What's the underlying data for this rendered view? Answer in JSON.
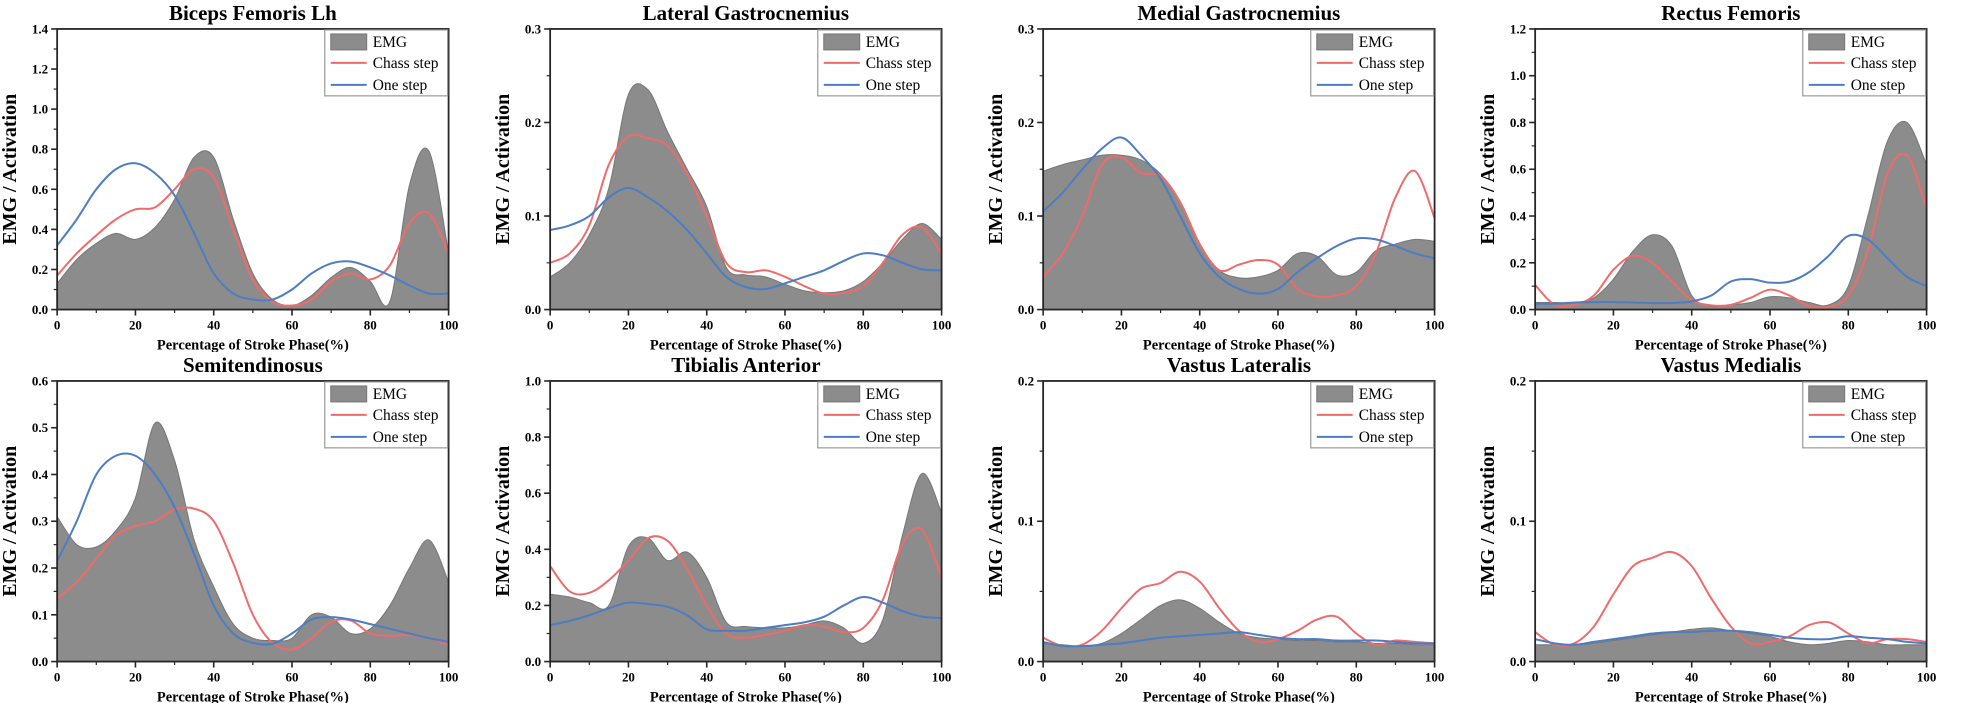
{
  "page": {
    "background": "#ffffff"
  },
  "chart_common": {
    "xlabel": "Percentage of Stroke Phase(%)",
    "ylabel": "EMG / Activation",
    "legend": [
      "EMG",
      "Chass step",
      "One step"
    ],
    "legend_position": "top-right",
    "xlim": [
      0,
      100
    ],
    "x_ticks": [
      0,
      20,
      40,
      60,
      80,
      100
    ],
    "x_minor_ticks": [
      10,
      30,
      50,
      70,
      90
    ],
    "grid": "off",
    "colors": {
      "emg_fill": "#8c8c8c",
      "emg_edge": "#767676",
      "chass_step": "#ef6b6b",
      "one_step": "#4c7dc3",
      "frame": "#262626",
      "legend_border": "#9a9a9a",
      "background": "#ffffff"
    }
  },
  "chart_data": [
    {
      "type": "area",
      "title": "Biceps Femoris Lh",
      "xlabel": "Percentage of Stroke Phase(%)",
      "ylabel": "EMG / Activation",
      "ylim": [
        0,
        1.4
      ],
      "yticks": [
        0.0,
        0.2,
        0.4,
        0.6,
        0.8,
        1.0,
        1.2,
        1.4
      ],
      "x": [
        0,
        5,
        10,
        15,
        20,
        25,
        30,
        35,
        40,
        45,
        50,
        55,
        60,
        65,
        70,
        75,
        80,
        85,
        90,
        95,
        100
      ],
      "series": [
        {
          "name": "EMG",
          "kind": "area",
          "values": [
            0.13,
            0.25,
            0.33,
            0.38,
            0.35,
            0.41,
            0.55,
            0.76,
            0.76,
            0.45,
            0.18,
            0.05,
            0.02,
            0.07,
            0.16,
            0.21,
            0.14,
            0.04,
            0.62,
            0.79,
            0.28
          ]
        },
        {
          "name": "Chass step",
          "kind": "line",
          "values": [
            0.17,
            0.28,
            0.37,
            0.45,
            0.5,
            0.51,
            0.6,
            0.7,
            0.66,
            0.4,
            0.15,
            0.04,
            0.02,
            0.05,
            0.14,
            0.18,
            0.15,
            0.22,
            0.43,
            0.48,
            0.28
          ]
        },
        {
          "name": "One step",
          "kind": "line",
          "values": [
            0.32,
            0.45,
            0.6,
            0.7,
            0.73,
            0.68,
            0.57,
            0.38,
            0.18,
            0.08,
            0.05,
            0.05,
            0.1,
            0.18,
            0.23,
            0.24,
            0.21,
            0.17,
            0.12,
            0.08,
            0.08
          ]
        }
      ]
    },
    {
      "type": "area",
      "title": "Lateral Gastrocnemius",
      "xlabel": "Percentage of Stroke Phase(%)",
      "ylabel": "EMG / Activation",
      "ylim": [
        0,
        0.3
      ],
      "yticks": [
        0.0,
        0.1,
        0.2,
        0.3
      ],
      "x": [
        0,
        5,
        10,
        15,
        20,
        25,
        30,
        35,
        40,
        45,
        50,
        55,
        60,
        65,
        70,
        75,
        80,
        85,
        90,
        95,
        100
      ],
      "series": [
        {
          "name": "EMG",
          "kind": "area",
          "values": [
            0.035,
            0.05,
            0.08,
            0.13,
            0.23,
            0.235,
            0.19,
            0.15,
            0.11,
            0.045,
            0.037,
            0.035,
            0.027,
            0.02,
            0.018,
            0.02,
            0.03,
            0.05,
            0.075,
            0.092,
            0.075
          ]
        },
        {
          "name": "Chass step",
          "kind": "line",
          "values": [
            0.05,
            0.06,
            0.09,
            0.155,
            0.185,
            0.183,
            0.175,
            0.145,
            0.1,
            0.05,
            0.04,
            0.042,
            0.035,
            0.025,
            0.017,
            0.018,
            0.025,
            0.05,
            0.08,
            0.088,
            0.06
          ]
        },
        {
          "name": "One step",
          "kind": "line",
          "values": [
            0.085,
            0.09,
            0.1,
            0.12,
            0.13,
            0.12,
            0.105,
            0.085,
            0.06,
            0.035,
            0.024,
            0.022,
            0.028,
            0.035,
            0.042,
            0.052,
            0.06,
            0.058,
            0.05,
            0.043,
            0.042
          ]
        }
      ]
    },
    {
      "type": "area",
      "title": "Medial Gastrocnemius",
      "xlabel": "Percentage of Stroke Phase(%)",
      "ylabel": "EMG / Activation",
      "ylim": [
        0,
        0.3
      ],
      "yticks": [
        0.0,
        0.1,
        0.2,
        0.3
      ],
      "x": [
        0,
        5,
        10,
        15,
        20,
        25,
        30,
        35,
        40,
        45,
        50,
        55,
        60,
        65,
        70,
        75,
        80,
        85,
        90,
        95,
        100
      ],
      "series": [
        {
          "name": "EMG",
          "kind": "area",
          "values": [
            0.148,
            0.155,
            0.16,
            0.165,
            0.165,
            0.16,
            0.145,
            0.115,
            0.07,
            0.042,
            0.034,
            0.035,
            0.042,
            0.06,
            0.057,
            0.037,
            0.04,
            0.063,
            0.07,
            0.075,
            0.073
          ]
        },
        {
          "name": "Chass step",
          "kind": "line",
          "values": [
            0.035,
            0.06,
            0.1,
            0.155,
            0.163,
            0.146,
            0.143,
            0.115,
            0.07,
            0.042,
            0.048,
            0.053,
            0.048,
            0.022,
            0.014,
            0.015,
            0.025,
            0.06,
            0.12,
            0.148,
            0.098
          ]
        },
        {
          "name": "One step",
          "kind": "line",
          "values": [
            0.105,
            0.125,
            0.15,
            0.172,
            0.184,
            0.165,
            0.14,
            0.1,
            0.06,
            0.035,
            0.022,
            0.017,
            0.022,
            0.04,
            0.055,
            0.068,
            0.076,
            0.075,
            0.068,
            0.06,
            0.055
          ]
        }
      ]
    },
    {
      "type": "area",
      "title": "Rectus Femoris",
      "xlabel": "Percentage of Stroke Phase(%)",
      "ylabel": "EMG / Activation",
      "ylim": [
        0,
        1.2
      ],
      "yticks": [
        0.0,
        0.2,
        0.4,
        0.6,
        0.8,
        1.0,
        1.2
      ],
      "x": [
        0,
        5,
        10,
        15,
        20,
        25,
        30,
        35,
        40,
        45,
        50,
        55,
        60,
        65,
        70,
        75,
        80,
        85,
        90,
        95,
        100
      ],
      "series": [
        {
          "name": "EMG",
          "kind": "area",
          "values": [
            0.03,
            0.03,
            0.03,
            0.05,
            0.13,
            0.25,
            0.32,
            0.27,
            0.06,
            0.015,
            0.02,
            0.03,
            0.055,
            0.05,
            0.03,
            0.02,
            0.1,
            0.4,
            0.72,
            0.8,
            0.62
          ]
        },
        {
          "name": "Chass step",
          "kind": "line",
          "values": [
            0.105,
            0.02,
            0.02,
            0.06,
            0.17,
            0.23,
            0.2,
            0.12,
            0.04,
            0.018,
            0.02,
            0.05,
            0.085,
            0.06,
            0.015,
            0.012,
            0.06,
            0.25,
            0.58,
            0.66,
            0.43
          ]
        },
        {
          "name": "One step",
          "kind": "line",
          "values": [
            0.025,
            0.025,
            0.03,
            0.032,
            0.032,
            0.03,
            0.028,
            0.028,
            0.035,
            0.06,
            0.12,
            0.13,
            0.115,
            0.12,
            0.16,
            0.23,
            0.315,
            0.3,
            0.22,
            0.14,
            0.1
          ]
        }
      ]
    },
    {
      "type": "area",
      "title": "Semitendinosus",
      "xlabel": "Percentage of Stroke Phase(%)",
      "ylabel": "EMG / Activation",
      "ylim": [
        0,
        0.6
      ],
      "yticks": [
        0.0,
        0.1,
        0.2,
        0.3,
        0.4,
        0.5,
        0.6
      ],
      "x": [
        0,
        5,
        10,
        15,
        20,
        25,
        30,
        35,
        40,
        45,
        50,
        55,
        60,
        65,
        70,
        75,
        80,
        85,
        90,
        95,
        100
      ],
      "series": [
        {
          "name": "EMG",
          "kind": "area",
          "values": [
            0.31,
            0.25,
            0.245,
            0.28,
            0.35,
            0.51,
            0.43,
            0.26,
            0.16,
            0.08,
            0.05,
            0.045,
            0.05,
            0.1,
            0.095,
            0.06,
            0.07,
            0.12,
            0.2,
            0.26,
            0.17
          ]
        },
        {
          "name": "Chass step",
          "kind": "line",
          "values": [
            0.135,
            0.17,
            0.22,
            0.27,
            0.29,
            0.3,
            0.325,
            0.327,
            0.3,
            0.21,
            0.1,
            0.04,
            0.026,
            0.05,
            0.085,
            0.088,
            0.06,
            0.055,
            0.057,
            0.05,
            0.035
          ]
        },
        {
          "name": "One step",
          "kind": "line",
          "values": [
            0.215,
            0.3,
            0.4,
            0.44,
            0.44,
            0.4,
            0.33,
            0.23,
            0.12,
            0.06,
            0.04,
            0.038,
            0.06,
            0.09,
            0.095,
            0.09,
            0.08,
            0.07,
            0.06,
            0.05,
            0.042
          ]
        }
      ]
    },
    {
      "type": "area",
      "title": "Tibialis Anterior",
      "xlabel": "Percentage of Stroke Phase(%)",
      "ylabel": "EMG / Activation",
      "ylim": [
        0,
        1.0
      ],
      "yticks": [
        0.0,
        0.2,
        0.4,
        0.6,
        0.8,
        1.0
      ],
      "x": [
        0,
        5,
        10,
        15,
        20,
        25,
        30,
        35,
        40,
        45,
        50,
        55,
        60,
        65,
        70,
        75,
        80,
        85,
        90,
        95,
        100
      ],
      "series": [
        {
          "name": "EMG",
          "kind": "area",
          "values": [
            0.24,
            0.23,
            0.21,
            0.2,
            0.41,
            0.44,
            0.36,
            0.39,
            0.3,
            0.14,
            0.125,
            0.12,
            0.12,
            0.13,
            0.145,
            0.12,
            0.065,
            0.15,
            0.45,
            0.67,
            0.53
          ]
        },
        {
          "name": "Chass step",
          "kind": "line",
          "values": [
            0.34,
            0.25,
            0.245,
            0.29,
            0.36,
            0.44,
            0.43,
            0.33,
            0.2,
            0.1,
            0.085,
            0.095,
            0.11,
            0.13,
            0.125,
            0.105,
            0.12,
            0.22,
            0.42,
            0.47,
            0.3
          ]
        },
        {
          "name": "One step",
          "kind": "line",
          "values": [
            0.13,
            0.145,
            0.165,
            0.19,
            0.21,
            0.205,
            0.195,
            0.165,
            0.115,
            0.11,
            0.11,
            0.12,
            0.13,
            0.14,
            0.16,
            0.2,
            0.23,
            0.21,
            0.18,
            0.16,
            0.155
          ]
        }
      ]
    },
    {
      "type": "area",
      "title": "Vastus Lateralis",
      "xlabel": "Percentage of Stroke Phase(%)",
      "ylabel": "EMG / Activation",
      "ylim": [
        0,
        0.2
      ],
      "yticks": [
        0.0,
        0.1,
        0.2
      ],
      "x": [
        0,
        5,
        10,
        15,
        20,
        25,
        30,
        35,
        40,
        45,
        50,
        55,
        60,
        65,
        70,
        75,
        80,
        85,
        90,
        95,
        100
      ],
      "series": [
        {
          "name": "EMG",
          "kind": "area",
          "values": [
            0.013,
            0.012,
            0.011,
            0.013,
            0.02,
            0.03,
            0.04,
            0.044,
            0.038,
            0.028,
            0.02,
            0.017,
            0.016,
            0.015,
            0.015,
            0.014,
            0.014,
            0.013,
            0.013,
            0.012,
            0.012
          ]
        },
        {
          "name": "Chass step",
          "kind": "line",
          "values": [
            0.017,
            0.011,
            0.012,
            0.022,
            0.038,
            0.052,
            0.056,
            0.064,
            0.057,
            0.038,
            0.022,
            0.014,
            0.016,
            0.022,
            0.03,
            0.032,
            0.02,
            0.012,
            0.015,
            0.014,
            0.013
          ]
        },
        {
          "name": "One step",
          "kind": "line",
          "values": [
            0.014,
            0.011,
            0.011,
            0.012,
            0.013,
            0.015,
            0.017,
            0.018,
            0.019,
            0.02,
            0.021,
            0.019,
            0.017,
            0.016,
            0.016,
            0.015,
            0.015,
            0.015,
            0.014,
            0.013,
            0.013
          ]
        }
      ]
    },
    {
      "type": "area",
      "title": "Vastus Medialis",
      "xlabel": "Percentage of Stroke Phase(%)",
      "ylabel": "EMG / Activation",
      "ylim": [
        0,
        0.2
      ],
      "yticks": [
        0.0,
        0.1,
        0.2
      ],
      "x": [
        0,
        5,
        10,
        15,
        20,
        25,
        30,
        35,
        40,
        45,
        50,
        55,
        60,
        65,
        70,
        75,
        80,
        85,
        90,
        95,
        100
      ],
      "series": [
        {
          "name": "EMG",
          "kind": "area",
          "values": [
            0.012,
            0.012,
            0.012,
            0.013,
            0.015,
            0.017,
            0.019,
            0.021,
            0.023,
            0.024,
            0.022,
            0.02,
            0.018,
            0.014,
            0.012,
            0.013,
            0.015,
            0.014,
            0.012,
            0.012,
            0.012
          ]
        },
        {
          "name": "Chass step",
          "kind": "line",
          "values": [
            0.021,
            0.012,
            0.013,
            0.025,
            0.048,
            0.068,
            0.074,
            0.078,
            0.068,
            0.045,
            0.025,
            0.013,
            0.014,
            0.018,
            0.026,
            0.028,
            0.02,
            0.013,
            0.016,
            0.016,
            0.014
          ]
        },
        {
          "name": "One step",
          "kind": "line",
          "values": [
            0.016,
            0.013,
            0.012,
            0.014,
            0.016,
            0.018,
            0.02,
            0.021,
            0.021,
            0.022,
            0.022,
            0.021,
            0.019,
            0.017,
            0.016,
            0.016,
            0.018,
            0.017,
            0.016,
            0.014,
            0.013
          ]
        }
      ]
    }
  ]
}
